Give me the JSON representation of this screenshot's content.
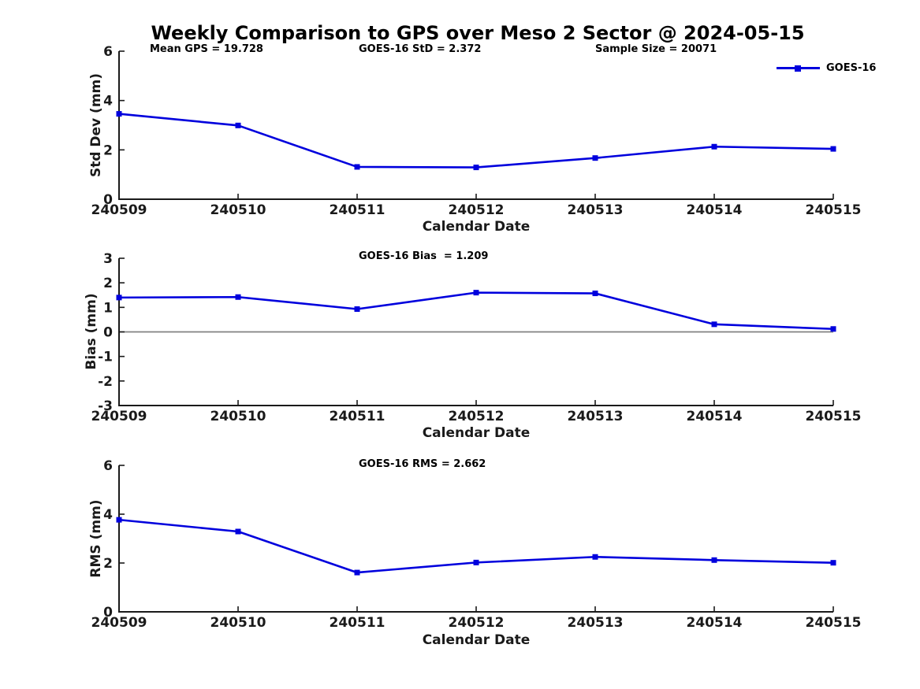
{
  "figure": {
    "title": "Weekly Comparison to GPS over Meso 2 Sector @ 2024-05-15",
    "background_color": "#ffffff",
    "line_color": "#0000dd",
    "axis_color": "#1a1a1a",
    "zero_line_color": "#808080",
    "marker_shape": "square"
  },
  "chart_data": [
    {
      "type": "line",
      "ylabel": "Std Dev (mm)",
      "xlabel": "Calendar Date",
      "categories": [
        "240509",
        "240510",
        "240511",
        "240512",
        "240513",
        "240514",
        "240515"
      ],
      "series": [
        {
          "name": "GOES-16",
          "values": [
            3.46,
            2.99,
            1.31,
            1.29,
            1.67,
            2.13,
            2.04
          ]
        }
      ],
      "ylim": [
        0,
        6
      ],
      "yticks": [
        "0",
        "2",
        "4",
        "6"
      ],
      "ytick_values": [
        0,
        2,
        4,
        6
      ],
      "grid": false,
      "zero_line": false,
      "annotations": [
        {
          "text": "Mean GPS = 19.728"
        },
        {
          "text": "GOES-16 StD = 2.372"
        },
        {
          "text": "Sample Size = 20071"
        }
      ],
      "legend": {
        "position": "top-right",
        "entries": [
          "GOES-16"
        ]
      }
    },
    {
      "type": "line",
      "ylabel": "Bias (mm)",
      "xlabel": "Calendar Date",
      "categories": [
        "240509",
        "240510",
        "240511",
        "240512",
        "240513",
        "240514",
        "240515"
      ],
      "series": [
        {
          "name": "GOES-16",
          "values": [
            1.4,
            1.42,
            0.93,
            1.6,
            1.57,
            0.31,
            0.12
          ]
        }
      ],
      "ylim": [
        -3,
        3
      ],
      "yticks": [
        "-3",
        "-2",
        "-1",
        "0",
        "1",
        "2",
        "3"
      ],
      "ytick_values": [
        -3,
        -2,
        -1,
        0,
        1,
        2,
        3
      ],
      "grid": false,
      "zero_line": true,
      "annotations": [
        {
          "text": "GOES-16 Bias  = 1.209"
        }
      ]
    },
    {
      "type": "line",
      "ylabel": "RMS (mm)",
      "xlabel": "Calendar Date",
      "categories": [
        "240509",
        "240510",
        "240511",
        "240512",
        "240513",
        "240514",
        "240515"
      ],
      "series": [
        {
          "name": "GOES-16",
          "values": [
            3.77,
            3.29,
            1.61,
            2.02,
            2.25,
            2.12,
            2.01
          ]
        }
      ],
      "ylim": [
        0,
        6
      ],
      "yticks": [
        "0",
        "2",
        "4",
        "6"
      ],
      "ytick_values": [
        0,
        2,
        4,
        6
      ],
      "grid": false,
      "zero_line": false,
      "annotations": [
        {
          "text": "GOES-16 RMS = 2.662"
        }
      ]
    }
  ]
}
